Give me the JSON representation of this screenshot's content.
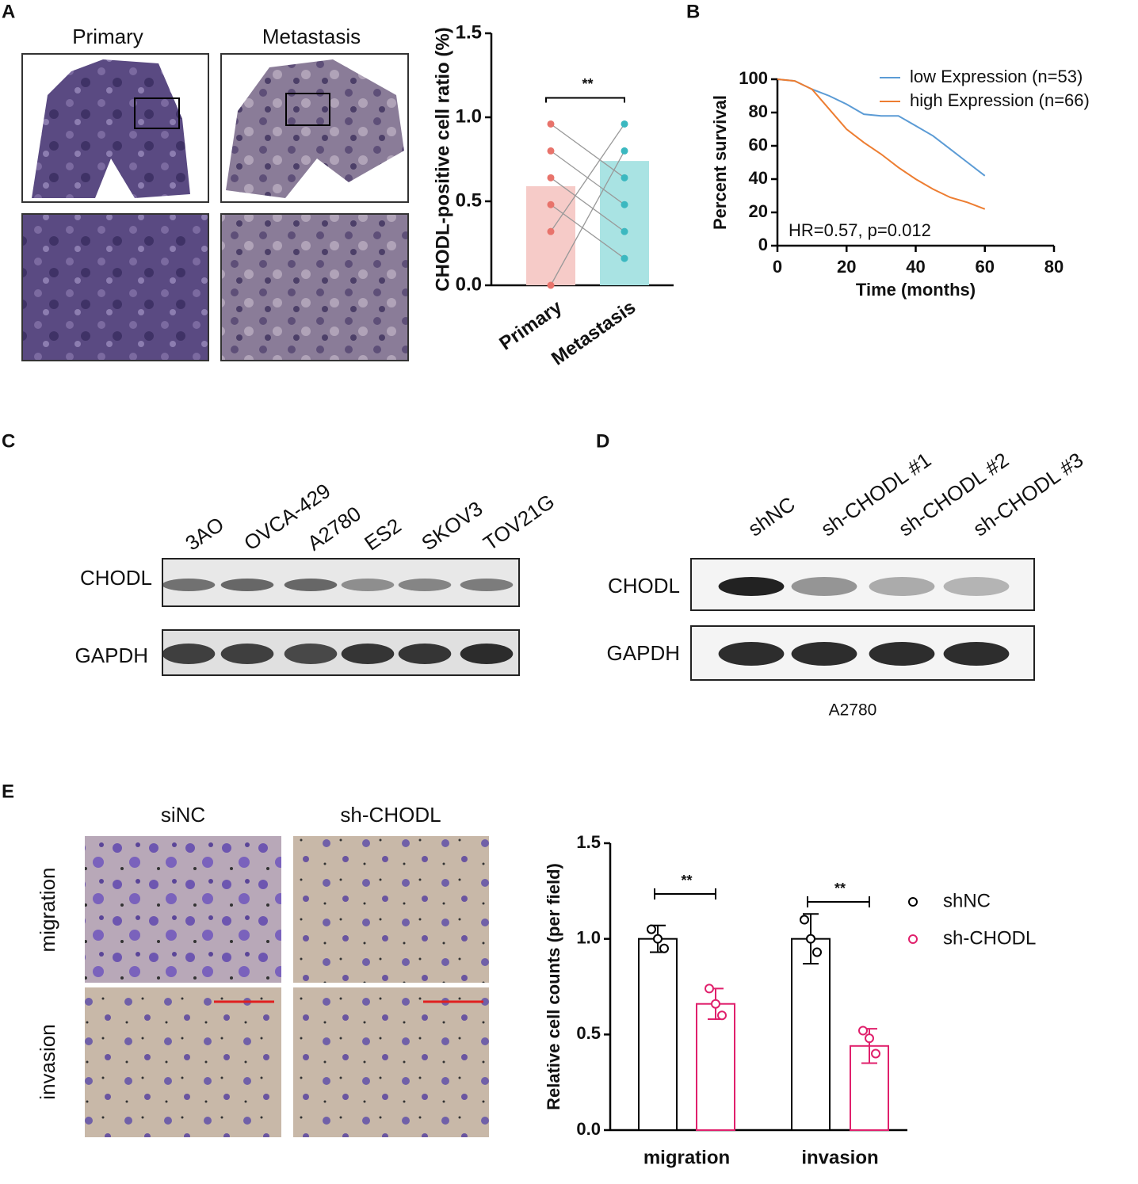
{
  "chart_data": [
    {
      "type": "bar",
      "ylabel": "CHODL-positive cell ratio (%)",
      "categories": [
        "Primary",
        "Metastasis"
      ],
      "values": [
        0.59,
        0.74
      ],
      "colors": [
        "#f6cbc8",
        "#a9e3e3"
      ],
      "point_colors": [
        "#e8736b",
        "#3bb8c0"
      ],
      "points": [
        [
          0.96,
          0.8,
          0.64,
          0.48,
          0.32,
          0.0
        ],
        [
          0.96,
          0.8,
          0.64,
          0.48,
          0.32,
          0.16
        ]
      ],
      "ylim": [
        0,
        1.5
      ],
      "yticks": [
        {
          "value": 0,
          "label": "0.0"
        },
        0.5,
        {
          "value": 1,
          "label": "1.0"
        },
        1.5
      ],
      "annotation": "**"
    },
    {
      "type": "line",
      "xlabel": "Time (months)",
      "ylabel": "Percent survival",
      "annotation": "HR=0.57, p=0.012",
      "x": [
        0,
        5,
        10,
        15,
        20,
        25,
        30,
        35,
        40,
        45,
        50,
        55,
        60
      ],
      "series": [
        {
          "name": "low Expression (n=53)",
          "color": "#5b9bd5",
          "values": [
            100,
            99,
            94,
            90,
            85,
            79,
            78,
            78,
            72,
            66,
            58,
            50,
            42
          ]
        },
        {
          "name": "high Expression (n=66)",
          "color": "#ed7d31",
          "values": [
            100,
            99,
            94,
            82,
            70,
            62,
            55,
            47,
            40,
            34,
            29,
            26,
            22
          ]
        }
      ],
      "xlim": [
        0,
        80
      ],
      "xticks": [
        0,
        20,
        40,
        60,
        80
      ],
      "ylim": [
        0,
        100
      ],
      "yticks": [
        0,
        20,
        40,
        60,
        80,
        100
      ]
    },
    {
      "type": "bar",
      "ylabel": "Relative cell counts (per field)",
      "categories": [
        "migration",
        "invasion"
      ],
      "series": [
        {
          "name": "shNC",
          "color": "#000000",
          "values": [
            1.0,
            1.0
          ],
          "errors": [
            0.07,
            0.13
          ],
          "points": [
            [
              1.05,
              1.0,
              0.95
            ],
            [
              1.1,
              1.0,
              0.93
            ]
          ]
        },
        {
          "name": "sh-CHODL",
          "color": "#e0206c",
          "values": [
            0.66,
            0.44
          ],
          "errors": [
            0.08,
            0.09
          ],
          "points": [
            [
              0.74,
              0.66,
              0.6
            ],
            [
              0.52,
              0.48,
              0.4
            ]
          ]
        }
      ],
      "ylim": [
        0,
        1.5
      ],
      "yticks": [
        {
          "value": 0,
          "label": "0.0"
        },
        0.5,
        {
          "value": 1,
          "label": "1.0"
        },
        1.5
      ],
      "annotations": [
        "**",
        "**"
      ]
    }
  ],
  "figure": {
    "panel_labels": [
      "A",
      "B",
      "C",
      "D",
      "E"
    ],
    "panel_a": {
      "image_columns": [
        "Primary",
        "Metastasis"
      ]
    },
    "panel_c": {
      "lanes": [
        "3AO",
        "OVCA-429",
        "A2780",
        "ES2",
        "SKOV3",
        "TOV21G"
      ],
      "rows": [
        "CHODL",
        "GAPDH"
      ]
    },
    "panel_d": {
      "lanes": [
        "shNC",
        "sh-CHODL #1",
        "sh-CHODL #2",
        "sh-CHODL #3"
      ],
      "rows": [
        "CHODL",
        "GAPDH"
      ],
      "cell_line": "A2780"
    },
    "panel_e": {
      "image_columns": [
        "siNC",
        "sh-CHODL"
      ],
      "image_rows": [
        "migration",
        "invasion"
      ]
    }
  }
}
